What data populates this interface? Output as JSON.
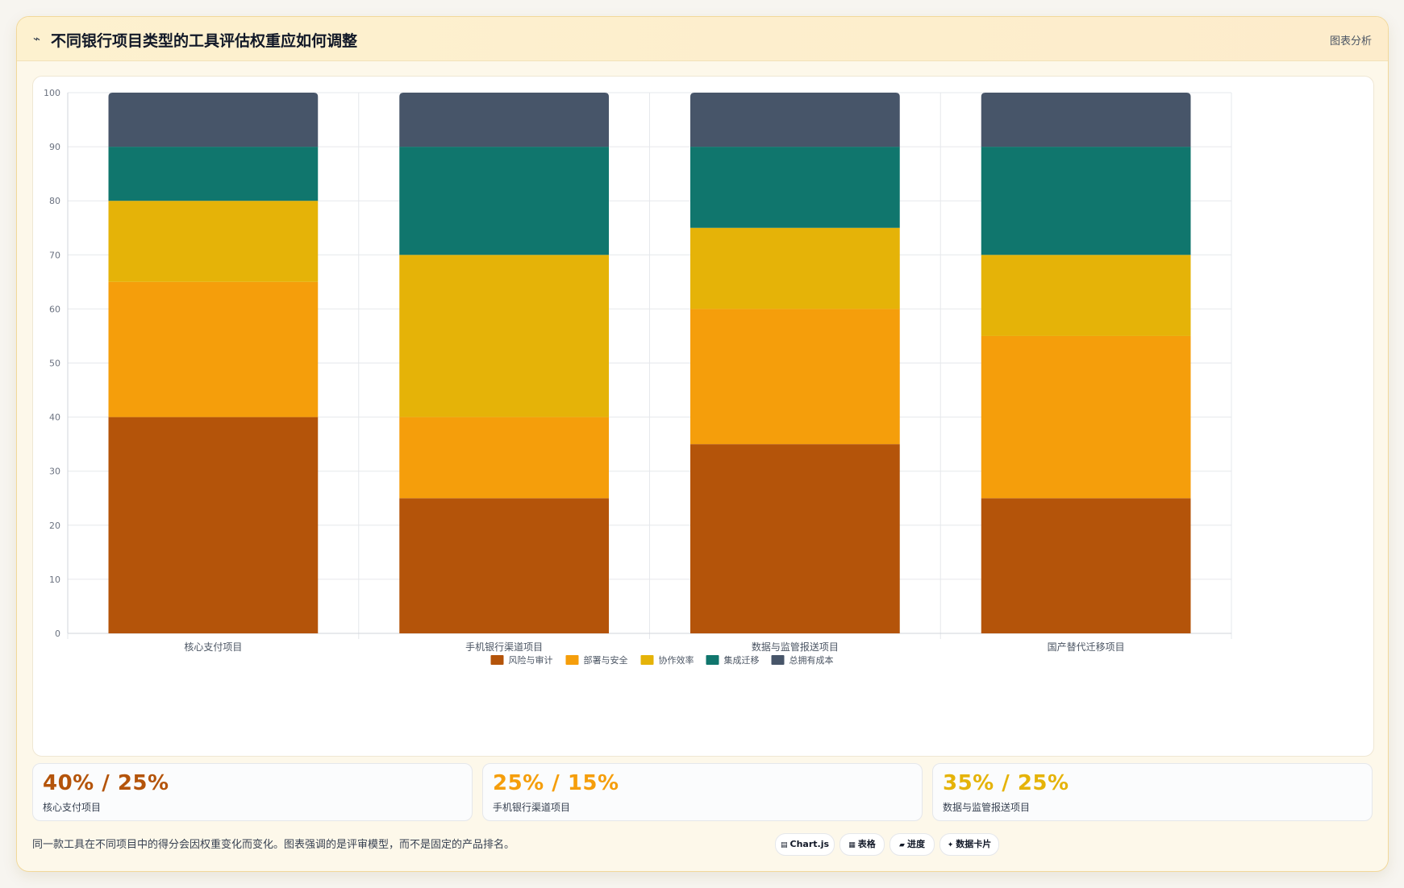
{
  "header": {
    "icon": "chart-line-icon",
    "title": "不同银行项目类型的工具评估权重应如何调整",
    "action_label": "图表分析"
  },
  "chart_data": {
    "type": "bar",
    "stacked": true,
    "categories": [
      "核心支付项目",
      "手机银行渠道项目",
      "数据与监管报送项目",
      "国产替代迁移项目"
    ],
    "series": [
      {
        "name": "风险与审计",
        "color": "#b4540a",
        "values": [
          40,
          25,
          35,
          25
        ]
      },
      {
        "name": "部署与安全",
        "color": "#f59e0b",
        "values": [
          25,
          15,
          25,
          30
        ]
      },
      {
        "name": "协作效率",
        "color": "#e5b308",
        "values": [
          15,
          30,
          15,
          15
        ]
      },
      {
        "name": "集成迁移",
        "color": "#10766d",
        "values": [
          10,
          20,
          15,
          20
        ]
      },
      {
        "name": "总拥有成本",
        "color": "#475569",
        "values": [
          10,
          10,
          10,
          10
        ]
      }
    ],
    "ylim": [
      0,
      100
    ],
    "yticks": [
      0,
      10,
      20,
      30,
      40,
      50,
      60,
      70,
      80,
      90,
      100
    ],
    "grid": true,
    "legend_position": "bottom"
  },
  "stats": [
    {
      "value": "40% / 25%",
      "label": "核心支付项目",
      "color": "#b4540a"
    },
    {
      "value": "25% / 15%",
      "label": "手机银行渠道项目",
      "color": "#f59e0b"
    },
    {
      "value": "35% / 25%",
      "label": "数据与监管报送项目",
      "color": "#e5b308"
    }
  ],
  "footer": {
    "note": "同一款工具在不同项目中的得分会因权重变化而变化。图表强调的是评审模型，而不是固定的产品排名。",
    "pills": [
      {
        "icon": "▤",
        "label": "Chart.js"
      },
      {
        "icon": "▦",
        "label": "表格"
      },
      {
        "icon": "▰",
        "label": "进度"
      },
      {
        "icon": "✦",
        "label": "数据卡片"
      }
    ]
  }
}
